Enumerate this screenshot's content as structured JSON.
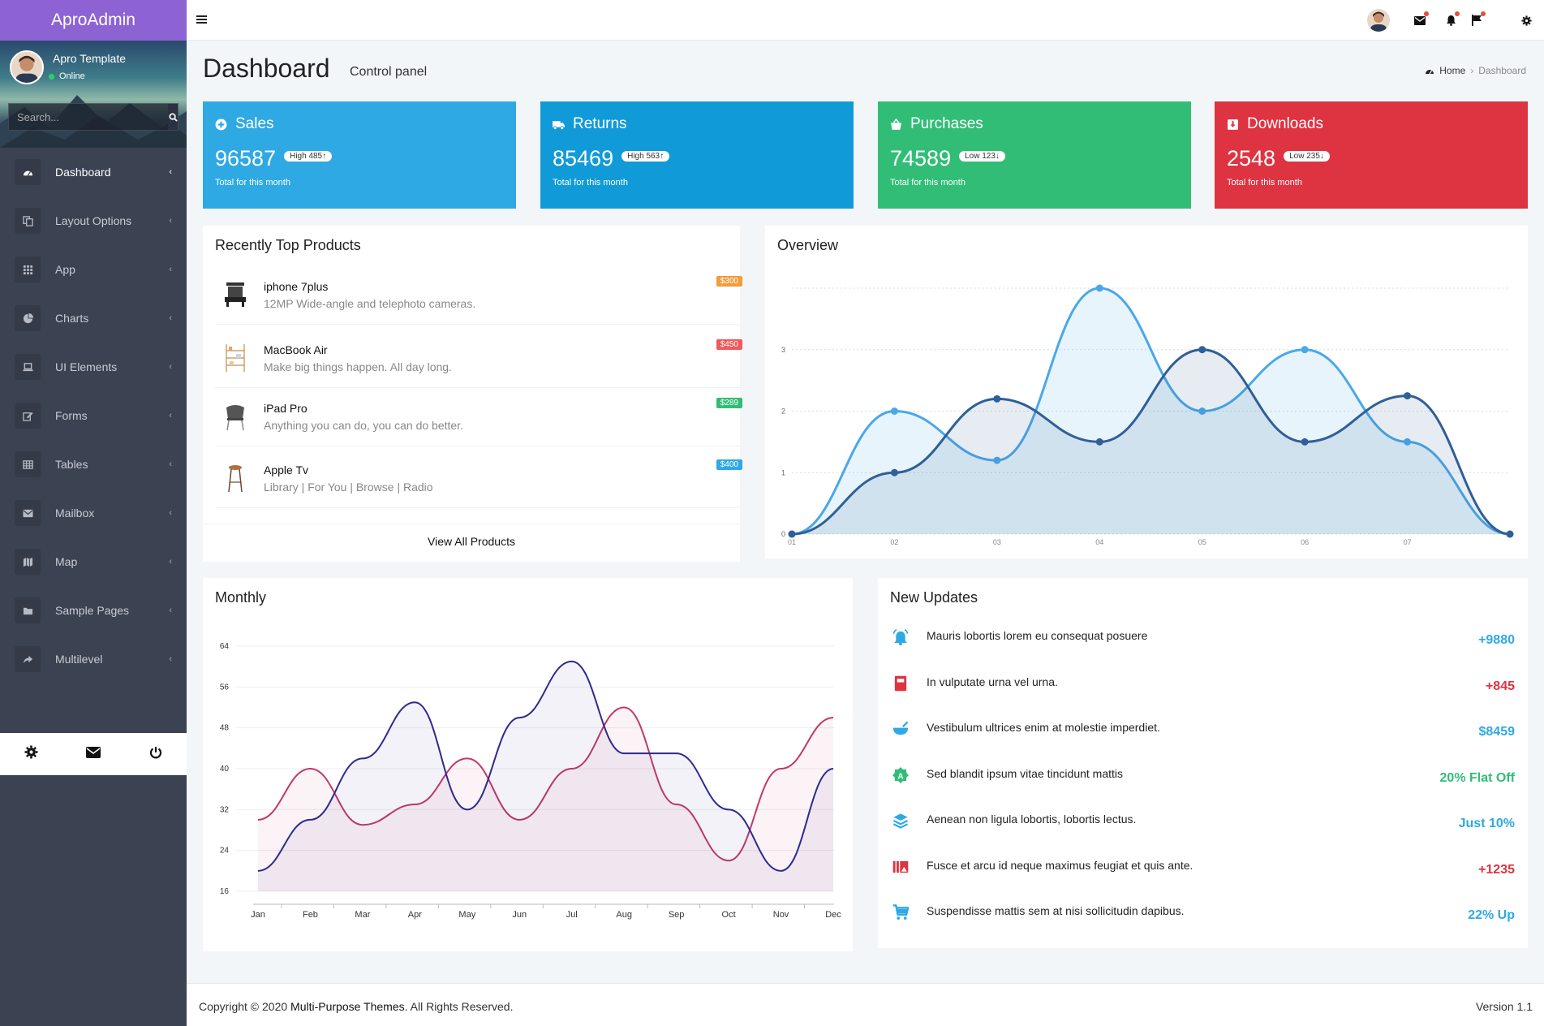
{
  "brand": "AproAdmin",
  "user": {
    "name": "Apro Template",
    "status": "Online"
  },
  "search": {
    "placeholder": "Search..."
  },
  "menu": [
    {
      "label": "Dashboard",
      "icon": "dashboard-icon"
    },
    {
      "label": "Layout Options",
      "icon": "copy-icon"
    },
    {
      "label": "App",
      "icon": "grid-icon"
    },
    {
      "label": "Charts",
      "icon": "pie-chart-icon"
    },
    {
      "label": "UI Elements",
      "icon": "laptop-icon"
    },
    {
      "label": "Forms",
      "icon": "edit-icon"
    },
    {
      "label": "Tables",
      "icon": "table-icon"
    },
    {
      "label": "Mailbox",
      "icon": "envelope-icon"
    },
    {
      "label": "Map",
      "icon": "map-icon"
    },
    {
      "label": "Sample Pages",
      "icon": "folder-icon"
    },
    {
      "label": "Multilevel",
      "icon": "share-icon"
    }
  ],
  "header": {
    "title": "Dashboard",
    "subtitle": "Control panel"
  },
  "breadcrumb": {
    "home": "Home",
    "current": "Dashboard"
  },
  "stats": [
    {
      "title": "Sales",
      "value": "96587",
      "badge": "High  485",
      "trend": "up",
      "footer": "Total for this month",
      "color": "#2fa9e3"
    },
    {
      "title": "Returns",
      "value": "85469",
      "badge": "High  563",
      "trend": "up",
      "footer": "Total for this month",
      "color": "#119ad8"
    },
    {
      "title": "Purchases",
      "value": "74589",
      "badge": "Low  123",
      "trend": "down",
      "footer": "Total for this month",
      "color": "#32bd77"
    },
    {
      "title": "Downloads",
      "value": "2548",
      "badge": "Low  235",
      "trend": "down",
      "footer": "Total for this month",
      "color": "#de3341"
    }
  ],
  "products": {
    "title": "Recently Top Products",
    "items": [
      {
        "name": "iphone 7plus",
        "desc": "12MP Wide-angle and telephoto cameras.",
        "price": "$300",
        "color": "#f39c3c"
      },
      {
        "name": "MacBook Air",
        "desc": "Make big things happen. All day long.",
        "price": "$450",
        "color": "#ef5a5a"
      },
      {
        "name": "iPad Pro",
        "desc": "Anything you can do, you can do better.",
        "price": "$289",
        "color": "#32bd77"
      },
      {
        "name": "Apple Tv",
        "desc": "Library | For You | Browse | Radio",
        "price": "$400",
        "color": "#2fa9e3"
      }
    ],
    "view_all": "View All Products"
  },
  "overview": {
    "title": "Overview"
  },
  "monthly": {
    "title": "Monthly"
  },
  "updates": {
    "title": "New Updates",
    "items": [
      {
        "text": "Mauris lobortis lorem eu consequat posuere",
        "value": "+9880",
        "color": "#2fa9e3",
        "icon": "bell-icon"
      },
      {
        "text": "In vulputate urna vel urna.",
        "value": "+845",
        "color": "#de3341",
        "icon": "book-icon"
      },
      {
        "text": "Vestibulum ultrices enim at molestie imperdiet.",
        "value": "$8459",
        "color": "#2fa9e3",
        "icon": "bowl-icon"
      },
      {
        "text": "Sed blandit ipsum vitae tincidunt mattis",
        "value": "20% Flat Off",
        "color": "#32bd77",
        "icon": "badge-icon"
      },
      {
        "text": "Aenean non ligula lobortis, lobortis lectus.",
        "value": "Just 10%",
        "color": "#2fa9e3",
        "icon": "layers-icon"
      },
      {
        "text": "Fusce et arcu id neque maximus feugiat et quis ante.",
        "value": "+1235",
        "color": "#de3341",
        "icon": "gallery-icon"
      },
      {
        "text": "Suspendisse mattis sem at nisi sollicitudin dapibus.",
        "value": "22% Up",
        "color": "#2fa9e3",
        "icon": "cart-icon"
      }
    ]
  },
  "footer": {
    "copy_prefix": "Copyright © 2020 ",
    "company": "Multi-Purpose Themes",
    "copy_suffix": ". All Rights Reserved.",
    "version": "Version 1.1"
  },
  "chart_data": [
    {
      "type": "area",
      "x": [
        "01",
        "02",
        "03",
        "04",
        "05",
        "06",
        "07",
        ""
      ],
      "ylim": [
        0,
        4
      ],
      "yticks": [
        0,
        1,
        2,
        3
      ],
      "series": [
        {
          "values": [
            0,
            2,
            1.2,
            4,
            2,
            3,
            1.5,
            0
          ],
          "color": "#4aa8e8"
        },
        {
          "values": [
            0,
            1,
            2.2,
            1.5,
            3,
            1.5,
            2.25,
            0
          ],
          "color": "#2f5f98"
        }
      ]
    },
    {
      "type": "area",
      "categories": [
        "Jan",
        "Feb",
        "Mar",
        "Apr",
        "May",
        "Jun",
        "Jul",
        "Aug",
        "Sep",
        "Oct",
        "Nov",
        "Dec"
      ],
      "ylim": [
        16,
        64
      ],
      "yticks": [
        16,
        24,
        32,
        40,
        48,
        56,
        64
      ],
      "series": [
        {
          "values": [
            30,
            40,
            29,
            33,
            42,
            30,
            40,
            52,
            33,
            22,
            40,
            50
          ],
          "color": "#c0396b"
        },
        {
          "values": [
            20,
            30,
            42,
            53,
            32,
            50,
            61,
            43,
            43,
            32,
            20,
            40
          ],
          "color": "#2e2a8c"
        }
      ]
    }
  ]
}
